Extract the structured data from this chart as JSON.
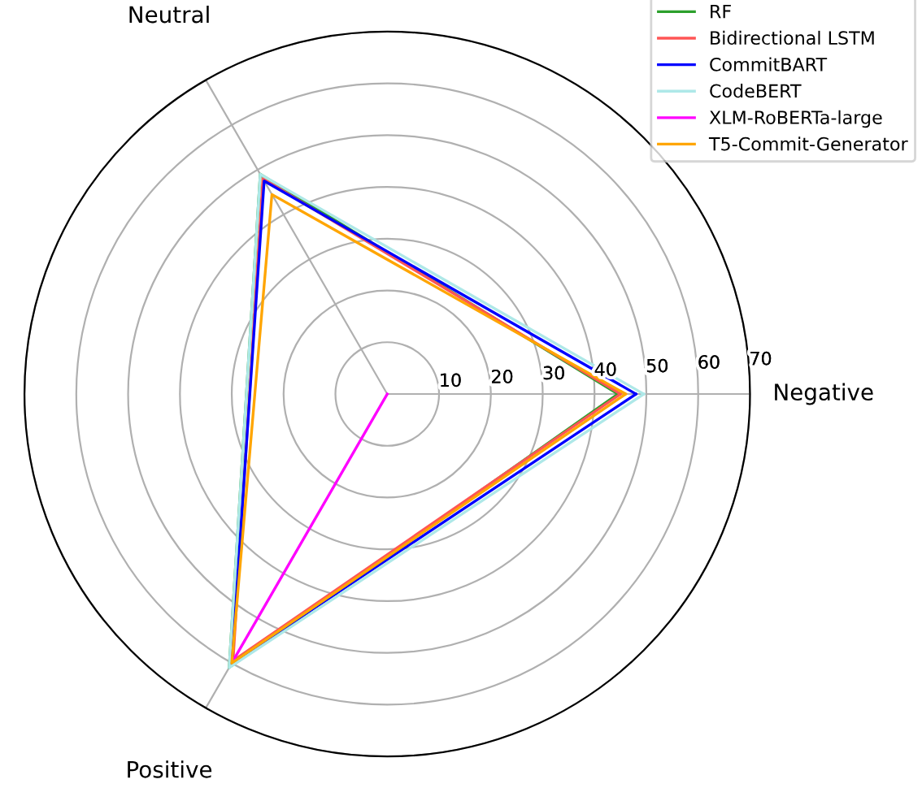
{
  "chart_data": {
    "type": "radar",
    "categories": [
      "Negative",
      "Positive",
      "Neutral"
    ],
    "series": [
      {
        "name": "RF",
        "color": "#2ca02c",
        "values": [
          44.5,
          61,
          49
        ]
      },
      {
        "name": "Bidirectional LSTM",
        "color": "#ff5555",
        "values": [
          45,
          59.5,
          48
        ]
      },
      {
        "name": "CommitBART",
        "color": "#0000ff",
        "values": [
          48,
          60,
          47.5
        ]
      },
      {
        "name": "CodeBERT",
        "color": "#aee8e8",
        "values": [
          49.5,
          61,
          49
        ]
      },
      {
        "name": "XLM-RoBERTa-large",
        "color": "#ff00ff",
        "values": [
          0,
          59.5,
          0
        ]
      },
      {
        "name": "T5-Commit-Generator",
        "color": "#ffa500",
        "values": [
          46,
          60,
          44.5
        ]
      }
    ],
    "ylim": [
      0,
      70
    ],
    "yticks": [
      10,
      20,
      30,
      40,
      50,
      60,
      70
    ],
    "grid": true,
    "legend": "top right"
  }
}
